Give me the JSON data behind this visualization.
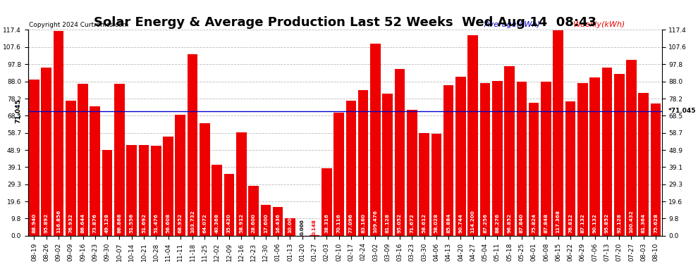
{
  "title": "Solar Energy & Average Production Last 52 Weeks  Wed Aug 14  08:43",
  "copyright": "Copyright 2024 Curtronics.com",
  "legend_average": "Average(kWh)",
  "legend_weekly": "Weekly(kWh)",
  "average_value": 71.045,
  "yticks": [
    0.0,
    9.8,
    19.6,
    29.3,
    39.1,
    48.9,
    58.7,
    68.5,
    78.2,
    88.0,
    97.8,
    107.6,
    117.4
  ],
  "bar_color": "#ee0000",
  "average_line_color": "#0000cc",
  "categories": [
    "08-19",
    "08-26",
    "09-02",
    "09-09",
    "09-16",
    "09-23",
    "09-30",
    "10-07",
    "10-14",
    "10-21",
    "10-28",
    "11-04",
    "11-11",
    "11-18",
    "11-25",
    "12-02",
    "12-09",
    "12-16",
    "12-23",
    "12-30",
    "01-06",
    "01-13",
    "01-20",
    "01-27",
    "02-03",
    "02-10",
    "02-17",
    "02-24",
    "03-02",
    "03-09",
    "03-16",
    "03-23",
    "03-30",
    "04-06",
    "04-13",
    "04-20",
    "04-27",
    "05-04",
    "05-11",
    "05-18",
    "05-25",
    "06-01",
    "06-08",
    "06-15",
    "06-22",
    "06-29",
    "07-06",
    "07-13",
    "07-20",
    "07-27",
    "08-03",
    "08-10"
  ],
  "values": [
    88.94,
    95.892,
    116.856,
    76.932,
    86.644,
    73.876,
    49.128,
    86.868,
    51.556,
    51.692,
    51.476,
    56.608,
    68.952,
    103.732,
    64.072,
    40.368,
    35.42,
    58.912,
    28.6,
    17.6,
    16.436,
    10.0,
    0.0,
    0.148,
    38.316,
    70.116,
    77.096,
    83.16,
    109.476,
    81.128,
    95.052,
    71.672,
    58.612,
    58.028,
    85.884,
    90.744,
    114.2,
    87.256,
    88.276,
    96.852,
    87.84,
    75.824,
    87.848,
    117.368,
    76.812,
    87.132,
    90.132,
    95.852,
    92.128,
    100.432,
    81.364,
    75.628
  ],
  "background_color": "#ffffff",
  "grid_color": "#bbbbbb",
  "title_fontsize": 13,
  "tick_fontsize": 6.5,
  "bar_label_fontsize": 5.2,
  "avg_label_fontsize": 6.5
}
